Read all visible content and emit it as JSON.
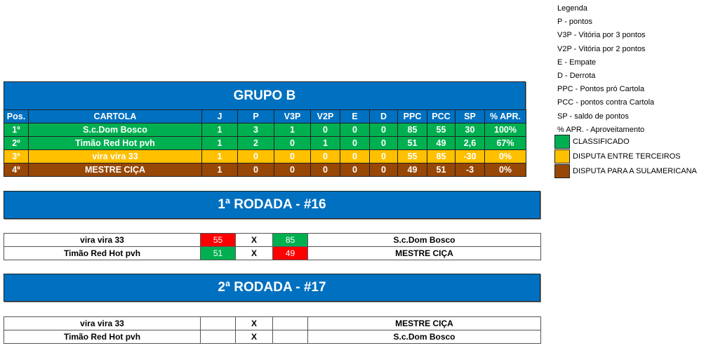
{
  "group": {
    "title": "GRUPO B",
    "headers": [
      "Pos.",
      "CARTOLA",
      "J",
      "P",
      "V3P",
      "V2P",
      "E",
      "D",
      "PPC",
      "PCC",
      "SP",
      "% APR."
    ],
    "rows": [
      [
        "1º",
        "S.c.Dom Bosco",
        "1",
        "3",
        "1",
        "0",
        "0",
        "0",
        "85",
        "55",
        "30",
        "100%"
      ],
      [
        "2º",
        "Timão Red Hot pvh",
        "1",
        "2",
        "0",
        "1",
        "0",
        "0",
        "51",
        "49",
        "2,6",
        "67%"
      ],
      [
        "3º",
        "vira vira 33",
        "1",
        "0",
        "0",
        "0",
        "0",
        "0",
        "55",
        "85",
        "-30",
        "0%"
      ],
      [
        "4º",
        "MESTRE CIÇA",
        "1",
        "0",
        "0",
        "0",
        "0",
        "0",
        "49",
        "51",
        "-3",
        "0%"
      ]
    ],
    "row_status": [
      "classificado",
      "classificado",
      "terceiros",
      "sulamericana"
    ]
  },
  "rounds": [
    {
      "title": "1ª RODADA - #16",
      "matches": [
        {
          "home": "vira vira 33",
          "home_score": "55",
          "sep": "X",
          "away_score": "85",
          "away": "S.c.Dom Bosco"
        },
        {
          "home": "Timão Red Hot pvh",
          "home_score": "51",
          "sep": "X",
          "away_score": "49",
          "away": "MESTRE CIÇA"
        }
      ]
    },
    {
      "title": "2ª RODADA - #17",
      "matches": [
        {
          "home": "vira vira 33",
          "home_score": "",
          "sep": "X",
          "away_score": "",
          "away": "MESTRE CIÇA"
        },
        {
          "home": "Timão Red Hot pvh",
          "home_score": "",
          "sep": "X",
          "away_score": "",
          "away": "S.c.Dom Bosco"
        }
      ]
    }
  ],
  "legend": {
    "items": [
      "Legenda",
      "P - pontos",
      "V3P - Vitória por 3 pontos",
      "V2P - Vitória por 2 pontos",
      "E - Empate",
      "D - Derrota",
      "PPC - Pontos pró Cartola",
      "PCC - pontos contra Cartola",
      "SP - saldo de pontos",
      "% APR. - Aproveitamento"
    ],
    "swatches": [
      {
        "label": "CLASSIFICADO",
        "color": "#00b050"
      },
      {
        "label": "DISPUTA ENTRE TERCEIROS",
        "color": "#ffc000"
      },
      {
        "label": "DISPUTA PARA A SULAMERICANA",
        "color": "#974706"
      }
    ]
  },
  "colors": {
    "header_blue": "#0070c0",
    "win": "#00b050",
    "loss": "#ff0000"
  }
}
